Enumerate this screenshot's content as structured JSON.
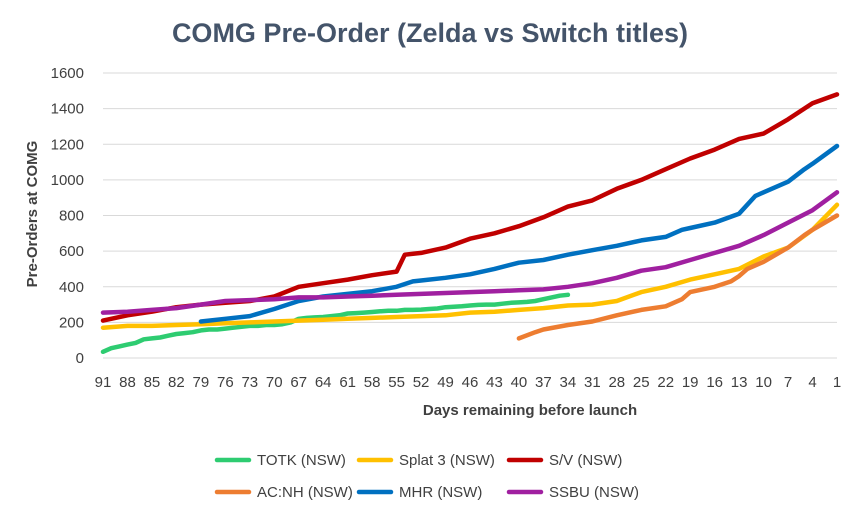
{
  "chart_data": {
    "type": "line",
    "title": "COMG Pre-Order (Zelda vs Switch titles)",
    "xlabel": "Days remaining before launch",
    "ylabel": "Pre-Orders at COMG",
    "xlim": [
      91,
      1
    ],
    "ylim": [
      0,
      1600
    ],
    "x_ticks": [
      91,
      88,
      85,
      82,
      79,
      76,
      73,
      70,
      67,
      64,
      61,
      58,
      55,
      52,
      49,
      46,
      43,
      40,
      37,
      34,
      31,
      28,
      25,
      22,
      19,
      16,
      13,
      10,
      7,
      4,
      1
    ],
    "y_ticks": [
      0,
      200,
      400,
      600,
      800,
      1000,
      1200,
      1400,
      1600
    ],
    "grid": true,
    "legend_position": "bottom",
    "series": [
      {
        "name": "TOTK (NSW)",
        "color": "#2ecc71",
        "points": [
          [
            91,
            35
          ],
          [
            90,
            55
          ],
          [
            89,
            65
          ],
          [
            88,
            75
          ],
          [
            87,
            85
          ],
          [
            86,
            105
          ],
          [
            85,
            110
          ],
          [
            84,
            115
          ],
          [
            83,
            125
          ],
          [
            82,
            135
          ],
          [
            81,
            140
          ],
          [
            80,
            145
          ],
          [
            79,
            155
          ],
          [
            78,
            160
          ],
          [
            77,
            160
          ],
          [
            76,
            165
          ],
          [
            75,
            170
          ],
          [
            74,
            175
          ],
          [
            73,
            180
          ],
          [
            72,
            180
          ],
          [
            71,
            185
          ],
          [
            70,
            185
          ],
          [
            69,
            190
          ],
          [
            68,
            200
          ],
          [
            67,
            220
          ],
          [
            66,
            225
          ],
          [
            65,
            228
          ],
          [
            64,
            230
          ],
          [
            63,
            235
          ],
          [
            62,
            240
          ],
          [
            61,
            250
          ],
          [
            60,
            252
          ],
          [
            59,
            255
          ],
          [
            58,
            258
          ],
          [
            57,
            262
          ],
          [
            56,
            265
          ],
          [
            55,
            265
          ],
          [
            54,
            270
          ],
          [
            53,
            270
          ],
          [
            52,
            272
          ],
          [
            51,
            275
          ],
          [
            50,
            278
          ],
          [
            49,
            285
          ],
          [
            48,
            288
          ],
          [
            47,
            290
          ],
          [
            46,
            295
          ],
          [
            45,
            298
          ],
          [
            44,
            300
          ],
          [
            43,
            300
          ],
          [
            42,
            305
          ],
          [
            41,
            310
          ],
          [
            40,
            312
          ],
          [
            39,
            315
          ],
          [
            38,
            320
          ],
          [
            37,
            330
          ],
          [
            36,
            340
          ],
          [
            35,
            350
          ],
          [
            34,
            355
          ]
        ]
      },
      {
        "name": "Splat 3 (NSW)",
        "color": "#ffc000",
        "points": [
          [
            91,
            170
          ],
          [
            88,
            180
          ],
          [
            85,
            180
          ],
          [
            82,
            185
          ],
          [
            79,
            190
          ],
          [
            76,
            195
          ],
          [
            73,
            200
          ],
          [
            70,
            205
          ],
          [
            67,
            210
          ],
          [
            64,
            215
          ],
          [
            61,
            220
          ],
          [
            58,
            225
          ],
          [
            55,
            230
          ],
          [
            52,
            235
          ],
          [
            49,
            240
          ],
          [
            46,
            255
          ],
          [
            43,
            260
          ],
          [
            40,
            270
          ],
          [
            37,
            280
          ],
          [
            34,
            295
          ],
          [
            31,
            300
          ],
          [
            28,
            320
          ],
          [
            25,
            370
          ],
          [
            22,
            400
          ],
          [
            19,
            440
          ],
          [
            16,
            470
          ],
          [
            13,
            500
          ],
          [
            10,
            570
          ],
          [
            7,
            620
          ],
          [
            4,
            720
          ],
          [
            1,
            860
          ]
        ]
      },
      {
        "name": "S/V (NSW)",
        "color": "#c00000",
        "points": [
          [
            91,
            210
          ],
          [
            88,
            240
          ],
          [
            85,
            260
          ],
          [
            82,
            285
          ],
          [
            79,
            300
          ],
          [
            76,
            310
          ],
          [
            73,
            320
          ],
          [
            70,
            345
          ],
          [
            67,
            400
          ],
          [
            64,
            420
          ],
          [
            61,
            440
          ],
          [
            58,
            465
          ],
          [
            55,
            485
          ],
          [
            54,
            580
          ],
          [
            52,
            590
          ],
          [
            49,
            620
          ],
          [
            46,
            670
          ],
          [
            43,
            700
          ],
          [
            40,
            740
          ],
          [
            37,
            790
          ],
          [
            34,
            850
          ],
          [
            31,
            885
          ],
          [
            28,
            950
          ],
          [
            25,
            1000
          ],
          [
            22,
            1060
          ],
          [
            19,
            1120
          ],
          [
            16,
            1170
          ],
          [
            13,
            1230
          ],
          [
            10,
            1260
          ],
          [
            7,
            1340
          ],
          [
            4,
            1430
          ],
          [
            1,
            1480
          ]
        ]
      },
      {
        "name": "AC:NH (NSW)",
        "color": "#ed7d31",
        "points": [
          [
            40,
            110
          ],
          [
            38,
            145
          ],
          [
            37,
            160
          ],
          [
            34,
            185
          ],
          [
            31,
            205
          ],
          [
            28,
            240
          ],
          [
            25,
            270
          ],
          [
            22,
            290
          ],
          [
            20,
            330
          ],
          [
            19,
            370
          ],
          [
            16,
            400
          ],
          [
            14,
            430
          ],
          [
            13,
            460
          ],
          [
            12,
            500
          ],
          [
            10,
            540
          ],
          [
            7,
            620
          ],
          [
            5,
            690
          ],
          [
            4,
            720
          ],
          [
            1,
            800
          ]
        ]
      },
      {
        "name": "MHR (NSW)",
        "color": "#0070c0",
        "points": [
          [
            79,
            205
          ],
          [
            76,
            220
          ],
          [
            73,
            235
          ],
          [
            70,
            275
          ],
          [
            67,
            320
          ],
          [
            64,
            345
          ],
          [
            61,
            360
          ],
          [
            58,
            375
          ],
          [
            55,
            400
          ],
          [
            53,
            430
          ],
          [
            52,
            435
          ],
          [
            49,
            450
          ],
          [
            46,
            470
          ],
          [
            43,
            500
          ],
          [
            40,
            535
          ],
          [
            37,
            550
          ],
          [
            34,
            580
          ],
          [
            31,
            605
          ],
          [
            28,
            630
          ],
          [
            25,
            660
          ],
          [
            22,
            680
          ],
          [
            20,
            720
          ],
          [
            19,
            730
          ],
          [
            16,
            760
          ],
          [
            13,
            810
          ],
          [
            11,
            910
          ],
          [
            10,
            930
          ],
          [
            7,
            990
          ],
          [
            5,
            1060
          ],
          [
            4,
            1090
          ],
          [
            1,
            1190
          ]
        ]
      },
      {
        "name": "SSBU (NSW)",
        "color": "#a020a0",
        "points": [
          [
            91,
            255
          ],
          [
            88,
            260
          ],
          [
            85,
            270
          ],
          [
            82,
            280
          ],
          [
            79,
            300
          ],
          [
            76,
            320
          ],
          [
            73,
            325
          ],
          [
            70,
            330
          ],
          [
            67,
            340
          ],
          [
            64,
            340
          ],
          [
            61,
            345
          ],
          [
            58,
            350
          ],
          [
            55,
            355
          ],
          [
            52,
            360
          ],
          [
            49,
            365
          ],
          [
            46,
            370
          ],
          [
            43,
            375
          ],
          [
            40,
            380
          ],
          [
            37,
            385
          ],
          [
            34,
            400
          ],
          [
            31,
            420
          ],
          [
            28,
            450
          ],
          [
            25,
            490
          ],
          [
            22,
            510
          ],
          [
            19,
            550
          ],
          [
            16,
            590
          ],
          [
            13,
            630
          ],
          [
            10,
            690
          ],
          [
            7,
            760
          ],
          [
            4,
            830
          ],
          [
            1,
            930
          ]
        ]
      }
    ]
  }
}
